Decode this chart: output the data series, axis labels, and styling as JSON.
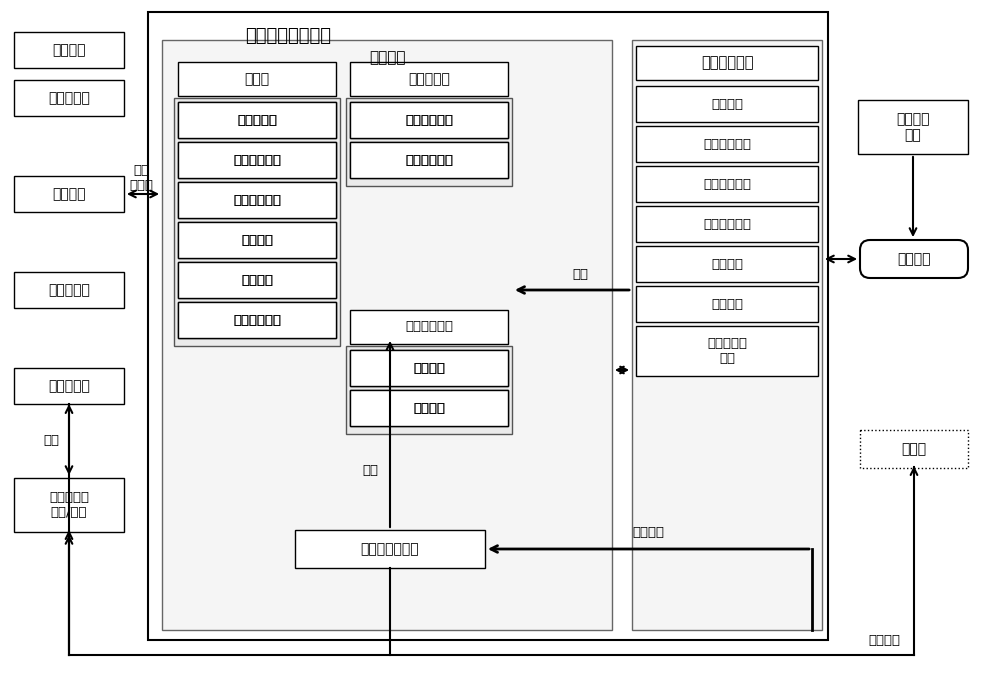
{
  "bg_color": "#ffffff",
  "main_title": "总线行为仿真系统",
  "backend_title": "后台系统",
  "pure_sim_title": "纯仿真",
  "semi_sim_title": "半实物仿真",
  "ui_title": "系统人机界面",
  "zong_jian_title": "总监状态监控",
  "left_boxes": [
    {
      "label": "录入数据"
    },
    {
      "label": "整车数据库"
    },
    {
      "label": "模块属性"
    },
    {
      "label": "总线逻辑库"
    },
    {
      "label": "网关路由表"
    }
  ],
  "pure_sim_items": [
    "数据库解析",
    "模块信息解析",
    "逻辑策略解析",
    "脚本生成",
    "界面生成",
    "报表模板配置"
  ],
  "semi_sim_items": [
    "真实模块信息",
    "虚拟模块信息"
  ],
  "zong_jian_items": [
    "参数分析",
    "总线干预"
  ],
  "ui_items": [
    "用户管理",
    "仿真模型配置",
    "模块信息配置",
    "录入数据界面",
    "监控界面",
    "报表管理",
    "逻辑策略库\n管理"
  ],
  "logic_db_label": "逻辑策略数据库",
  "db_file_label": "数据库文件\n存储/读取",
  "power_label": "电源环境\n控制",
  "ecu_label": "电控模块",
  "database_label": "数据库",
  "arrow_labels": {
    "hotai": "后台\n分析库",
    "pipeipei": "匹配",
    "read": "读取",
    "input": "输入",
    "second_dev": "二次开发",
    "various_files": "各类文件"
  }
}
